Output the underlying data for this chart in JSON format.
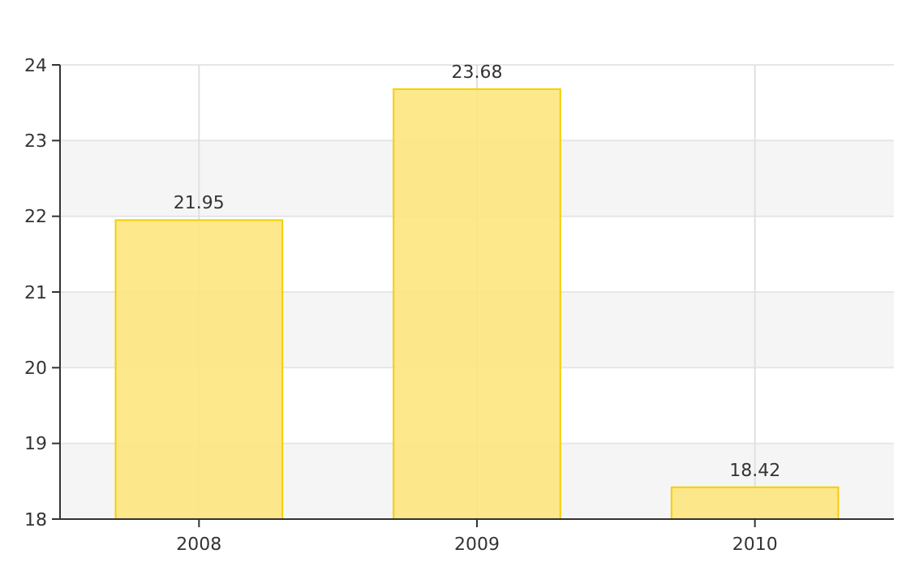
{
  "chart_data": {
    "type": "bar",
    "categories": [
      "2008",
      "2009",
      "2010"
    ],
    "values": [
      21.95,
      23.68,
      18.42
    ],
    "color": "#fde680",
    "ylim": [
      18,
      24
    ],
    "yticks": [
      18,
      19,
      20,
      21,
      22,
      23,
      24
    ],
    "grid": true,
    "data_labels": true
  }
}
